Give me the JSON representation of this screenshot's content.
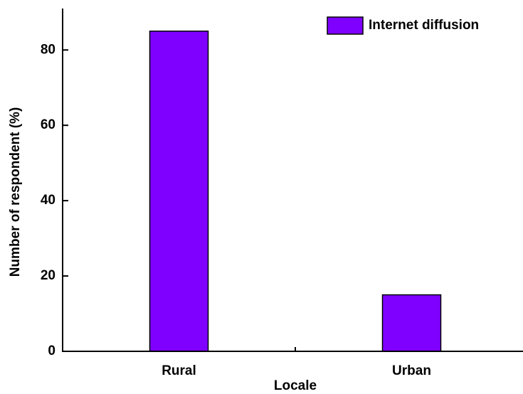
{
  "chart_data": {
    "type": "bar",
    "x_label": "Locale",
    "y_label": "Number of respondent (%)",
    "categories": [
      "Rural",
      "Urban"
    ],
    "series": [
      {
        "name": "Internet diffusion",
        "color": "#7f00ff",
        "values": [
          85,
          15
        ]
      }
    ],
    "ylim": [
      0,
      91
    ],
    "yticks": [
      0,
      20,
      40,
      60,
      80
    ],
    "legend": "top-right"
  }
}
